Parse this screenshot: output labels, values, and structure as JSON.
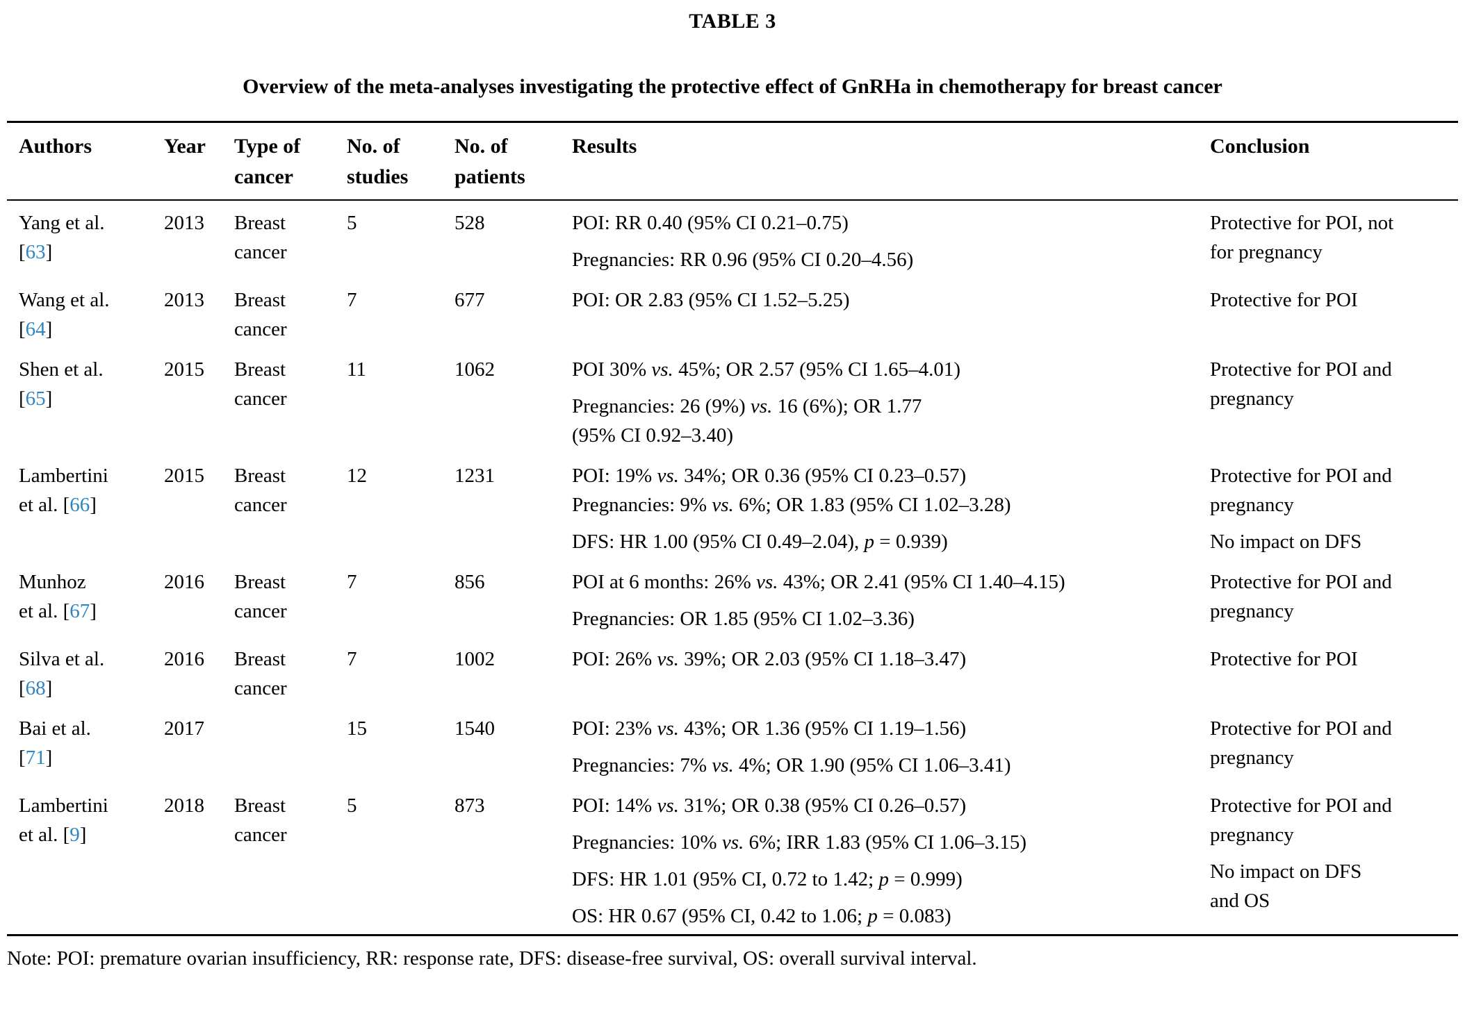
{
  "table_label": "TABLE 3",
  "title": "Overview of the meta-analyses investigating the protective effect of GnRHa in chemotherapy for breast cancer",
  "note": "Note: POI: premature ovarian insufficiency, RR: response rate, DFS: disease-free survival, OS: overall survival interval.",
  "colors": {
    "reference_link": "#2E86C1",
    "text": "#000000",
    "background": "#FFFFFF"
  },
  "columns": [
    {
      "id": "authors",
      "lines": [
        "Authors"
      ]
    },
    {
      "id": "year",
      "lines": [
        "Year"
      ]
    },
    {
      "id": "type-of-cancer",
      "lines": [
        "Type of",
        "cancer"
      ]
    },
    {
      "id": "no-of-studies",
      "lines": [
        "No. of",
        "studies"
      ]
    },
    {
      "id": "no-of-patients",
      "lines": [
        "No. of",
        "patients"
      ]
    },
    {
      "id": "results",
      "lines": [
        "Results"
      ]
    },
    {
      "id": "conclusion",
      "lines": [
        "Conclusion"
      ]
    }
  ],
  "rows": [
    {
      "authors": [
        [
          {
            "t": "Yang et al."
          }
        ],
        [
          {
            "t": "["
          },
          {
            "t": "63",
            "ref": true
          },
          {
            "t": "]"
          }
        ]
      ],
      "year": "2013",
      "cancer": [
        "Breast",
        "cancer"
      ],
      "studies": "5",
      "patients": "528",
      "results": [
        [
          [
            {
              "t": "POI: RR 0.40 (95% CI 0.21–0.75)"
            }
          ]
        ],
        [
          [
            {
              "t": "Pregnancies: RR 0.96 (95% CI 0.20–4.56)"
            }
          ]
        ]
      ],
      "conclusion": [
        [
          "Protective for POI, not",
          "for pregnancy"
        ]
      ]
    },
    {
      "authors": [
        [
          {
            "t": "Wang et al."
          }
        ],
        [
          {
            "t": "["
          },
          {
            "t": "64",
            "ref": true
          },
          {
            "t": "]"
          }
        ]
      ],
      "year": "2013",
      "cancer": [
        "Breast",
        "cancer"
      ],
      "studies": "7",
      "patients": "677",
      "results": [
        [
          [
            {
              "t": "POI: OR 2.83 (95% CI 1.52–5.25)"
            }
          ]
        ]
      ],
      "conclusion": [
        [
          "Protective for POI"
        ]
      ]
    },
    {
      "authors": [
        [
          {
            "t": "Shen et al."
          }
        ],
        [
          {
            "t": "["
          },
          {
            "t": "65",
            "ref": true
          },
          {
            "t": "]"
          }
        ]
      ],
      "year": "2015",
      "cancer": [
        "Breast",
        "cancer"
      ],
      "studies": "11",
      "patients": "1062",
      "results": [
        [
          [
            {
              "t": "POI 30% "
            },
            {
              "t": "vs.",
              "i": true
            },
            {
              "t": " 45%; OR 2.57 (95% CI 1.65–4.01)"
            }
          ]
        ],
        [
          [
            {
              "t": "Pregnancies: 26 (9%) "
            },
            {
              "t": "vs.",
              "i": true
            },
            {
              "t": " 16 (6%); OR 1.77"
            }
          ],
          [
            {
              "t": "(95% CI 0.92–3.40)"
            }
          ]
        ]
      ],
      "conclusion": [
        [
          "Protective for POI and",
          "pregnancy"
        ]
      ]
    },
    {
      "authors": [
        [
          {
            "t": "Lambertini"
          }
        ],
        [
          {
            "t": "et al. ["
          },
          {
            "t": "66",
            "ref": true
          },
          {
            "t": "]"
          }
        ]
      ],
      "year": "2015",
      "cancer": [
        "Breast",
        "cancer"
      ],
      "studies": "12",
      "patients": "1231",
      "results": [
        [
          [
            {
              "t": "POI: 19% "
            },
            {
              "t": "vs.",
              "i": true
            },
            {
              "t": " 34%; OR 0.36 (95% CI 0.23–0.57)"
            }
          ],
          [
            {
              "t": "Pregnancies: 9% "
            },
            {
              "t": "vs.",
              "i": true
            },
            {
              "t": " 6%; OR 1.83 (95% CI 1.02–3.28)"
            }
          ]
        ],
        [
          [
            {
              "t": "DFS: HR 1.00 (95% CI 0.49–2.04), "
            },
            {
              "t": "p",
              "i": true
            },
            {
              "t": " = 0.939)"
            }
          ]
        ]
      ],
      "conclusion": [
        [
          "Protective for POI and",
          "pregnancy"
        ],
        [
          "No impact on DFS"
        ]
      ]
    },
    {
      "authors": [
        [
          {
            "t": "Munhoz"
          }
        ],
        [
          {
            "t": "et al. ["
          },
          {
            "t": "67",
            "ref": true
          },
          {
            "t": "]"
          }
        ]
      ],
      "year": "2016",
      "cancer": [
        "Breast",
        "cancer"
      ],
      "studies": "7",
      "patients": "856",
      "results": [
        [
          [
            {
              "t": "POI at 6 months: 26% "
            },
            {
              "t": "vs.",
              "i": true
            },
            {
              "t": " 43%; OR 2.41 (95% CI 1.40–4.15)"
            }
          ]
        ],
        [
          [
            {
              "t": "Pregnancies: OR 1.85 (95% CI 1.02–3.36)"
            }
          ]
        ]
      ],
      "conclusion": [
        [
          "Protective for POI and",
          "pregnancy"
        ]
      ]
    },
    {
      "authors": [
        [
          {
            "t": "Silva et al."
          }
        ],
        [
          {
            "t": "["
          },
          {
            "t": "68",
            "ref": true
          },
          {
            "t": "]"
          }
        ]
      ],
      "year": "2016",
      "cancer": [
        "Breast",
        "cancer"
      ],
      "studies": "7",
      "patients": "1002",
      "results": [
        [
          [
            {
              "t": "POI: 26% "
            },
            {
              "t": "vs.",
              "i": true
            },
            {
              "t": " 39%; OR 2.03 (95% CI 1.18–3.47)"
            }
          ]
        ]
      ],
      "conclusion": [
        [
          "Protective for POI"
        ]
      ]
    },
    {
      "authors": [
        [
          {
            "t": "Bai et al."
          }
        ],
        [
          {
            "t": "["
          },
          {
            "t": "71",
            "ref": true
          },
          {
            "t": "]"
          }
        ]
      ],
      "year": "2017",
      "cancer": [],
      "studies": "15",
      "patients": "1540",
      "results": [
        [
          [
            {
              "t": "POI: 23% "
            },
            {
              "t": "vs.",
              "i": true
            },
            {
              "t": " 43%; OR 1.36 (95% CI 1.19–1.56)"
            }
          ]
        ],
        [
          [
            {
              "t": "Pregnancies: 7% "
            },
            {
              "t": "vs.",
              "i": true
            },
            {
              "t": " 4%; OR 1.90 (95% CI 1.06–3.41)"
            }
          ]
        ]
      ],
      "conclusion": [
        [
          "Protective for POI and",
          "pregnancy"
        ]
      ]
    },
    {
      "authors": [
        [
          {
            "t": "Lambertini"
          }
        ],
        [
          {
            "t": "et al. ["
          },
          {
            "t": "9",
            "ref": true
          },
          {
            "t": "]"
          }
        ]
      ],
      "year": "2018",
      "cancer": [
        "Breast",
        "cancer"
      ],
      "studies": "5",
      "patients": "873",
      "results": [
        [
          [
            {
              "t": "POI: 14% "
            },
            {
              "t": "vs.",
              "i": true
            },
            {
              "t": " 31%; OR 0.38 (95% CI 0.26–0.57)"
            }
          ]
        ],
        [
          [
            {
              "t": "Pregnancies: 10% "
            },
            {
              "t": "vs.",
              "i": true
            },
            {
              "t": " 6%; IRR 1.83 (95% CI 1.06–3.15)"
            }
          ]
        ],
        [
          [
            {
              "t": "DFS: HR 1.01 (95% CI, 0.72 to 1.42; "
            },
            {
              "t": "p",
              "i": true
            },
            {
              "t": " = 0.999)"
            }
          ]
        ],
        [
          [
            {
              "t": "OS: HR 0.67 (95% CI, 0.42 to 1.06; "
            },
            {
              "t": "p",
              "i": true
            },
            {
              "t": " = 0.083)"
            }
          ]
        ]
      ],
      "conclusion": [
        [
          "Protective for POI and",
          "pregnancy"
        ],
        [
          "No impact on DFS",
          "and OS"
        ]
      ]
    }
  ]
}
